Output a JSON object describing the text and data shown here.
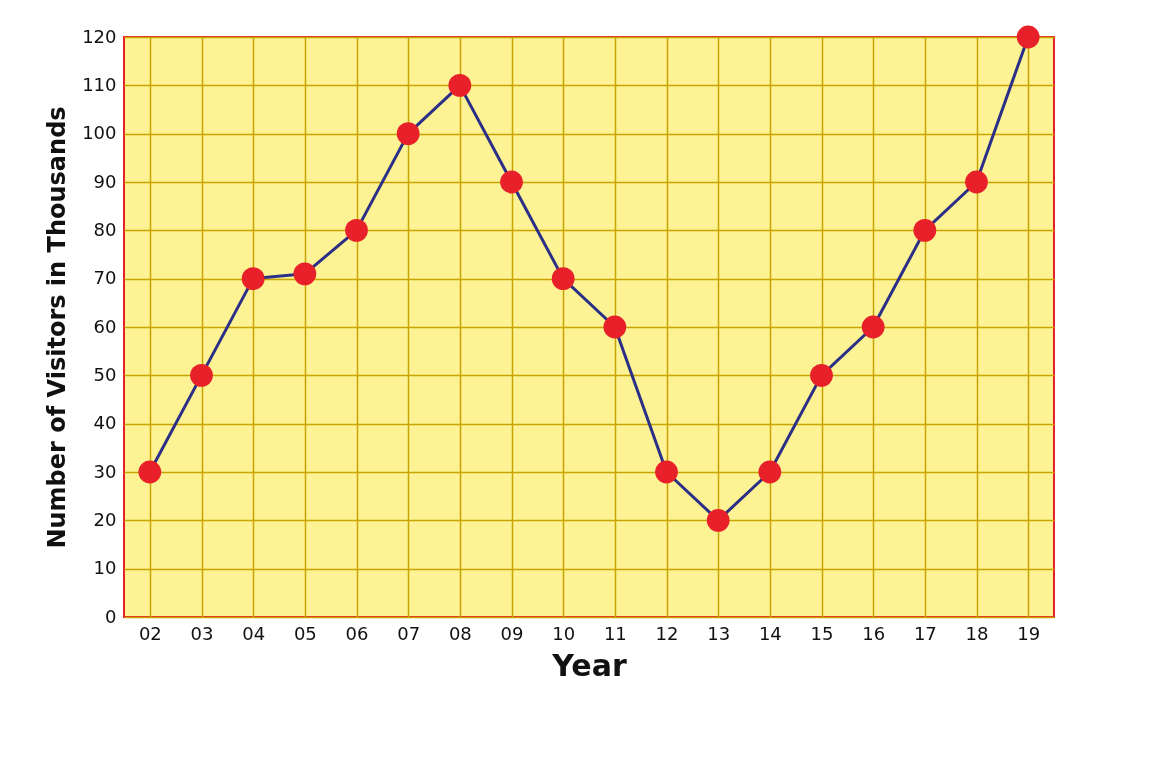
{
  "chart_data": {
    "type": "line",
    "xlabel": "Year",
    "ylabel": "Number of Visitors in Thousands",
    "categories": [
      "02",
      "03",
      "04",
      "05",
      "06",
      "07",
      "08",
      "09",
      "10",
      "11",
      "12",
      "13",
      "14",
      "15",
      "16",
      "17",
      "18",
      "19"
    ],
    "series": [
      {
        "color": "#2b2f86",
        "values": [
          30,
          50,
          70,
          71,
          80,
          100,
          110,
          90,
          70,
          60,
          30,
          20,
          30,
          50,
          60,
          80,
          90,
          120
        ]
      }
    ],
    "ylim": [
      0,
      120
    ],
    "yticks": [
      0,
      10,
      20,
      30,
      40,
      50,
      60,
      70,
      80,
      90,
      100,
      110,
      120
    ],
    "grid": true,
    "marker": "circle",
    "line_style": "solid",
    "legend": false
  }
}
